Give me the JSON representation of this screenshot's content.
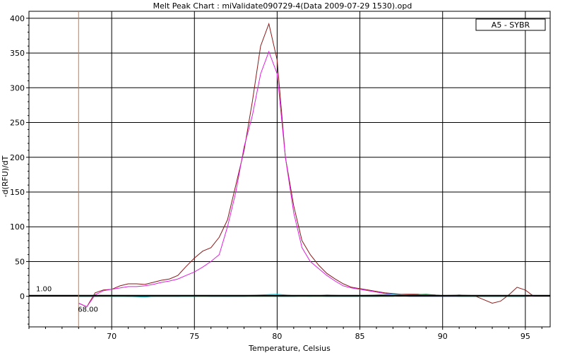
{
  "chart_data": {
    "type": "line",
    "title": "Melt Peak Chart : miValidate090729-4(Data 2009-07-29 1530).opd",
    "xlabel": "Temperature, Celsius",
    "ylabel": "-d(RFU)/dT",
    "xlim": [
      65,
      96.5
    ],
    "ylim": [
      -44,
      410
    ],
    "x_ticks": [
      70,
      75,
      80,
      85,
      90,
      95
    ],
    "x_tick_labels": [
      "70",
      "75",
      "80",
      "85",
      "90",
      "95"
    ],
    "y_ticks": [
      0,
      50,
      100,
      150,
      200,
      250,
      300,
      350,
      400
    ],
    "y_tick_labels": [
      "0",
      "50",
      "100",
      "150",
      "200",
      "250",
      "300",
      "350",
      "400"
    ],
    "grid": true,
    "legend": {
      "placement": "top-right",
      "entries": [
        "A5 - SYBR"
      ]
    },
    "threshold": {
      "value": 1.0,
      "label": "1.00"
    },
    "start_marker": {
      "x": 68.0,
      "label": "68.00",
      "color": "#e07030"
    },
    "colors": {
      "dark_red": "#8b1a1a",
      "magenta": "#e020e0",
      "cyan": "#20c8d8",
      "dark_blue": "#204080",
      "green": "#208040"
    },
    "series": [
      {
        "color_key": "dark_red",
        "x": [
          68,
          68.5,
          69,
          69.5,
          70,
          70.5,
          71,
          71.5,
          72,
          72.5,
          73,
          73.5,
          74,
          74.5,
          75,
          75.5,
          76,
          76.5,
          77,
          77.5,
          78,
          78.5,
          79,
          79.5,
          80,
          80.5,
          81,
          81.5,
          82,
          82.5,
          83,
          83.5,
          84,
          84.5,
          85,
          85.5,
          86,
          86.5,
          87,
          87.5,
          88,
          88.5,
          89,
          89.5,
          90,
          90.5,
          91,
          91.5,
          92,
          92.5,
          93,
          93.5,
          94,
          94.5,
          95,
          95.5
        ],
        "y": [
          -10,
          -15,
          5,
          9,
          10,
          15,
          18,
          18,
          17,
          20,
          23,
          25,
          30,
          43,
          55,
          65,
          70,
          85,
          110,
          160,
          210,
          280,
          360,
          392,
          340,
          200,
          130,
          80,
          60,
          45,
          33,
          25,
          18,
          13,
          11,
          9,
          7,
          5,
          4,
          3,
          3,
          3,
          2,
          2,
          1,
          1,
          2,
          1,
          0,
          -5,
          -10,
          -7,
          2,
          13,
          9,
          0
        ]
      },
      {
        "color_key": "magenta",
        "x": [
          68,
          68.5,
          69,
          69.5,
          70,
          70.5,
          71,
          71.5,
          72,
          72.5,
          73,
          73.5,
          74,
          74.5,
          75,
          75.5,
          76,
          76.5,
          77,
          77.5,
          78,
          78.5,
          79,
          79.5,
          80,
          80.5,
          81,
          81.5,
          82,
          82.5,
          83,
          83.5,
          84,
          84.5,
          85,
          85.5,
          86,
          86.5,
          87,
          87.5,
          88,
          88.5,
          89,
          89.5,
          90,
          90.5,
          91,
          91.5,
          92,
          92.5,
          93,
          93.5,
          94,
          94.5,
          95,
          95.5
        ],
        "y": [
          -10,
          -15,
          2,
          8,
          10,
          12,
          14,
          14,
          15,
          17,
          20,
          22,
          25,
          30,
          35,
          42,
          50,
          60,
          100,
          150,
          215,
          260,
          320,
          352,
          320,
          200,
          120,
          70,
          50,
          40,
          30,
          22,
          15,
          12,
          10,
          8,
          6,
          4,
          3,
          2,
          2,
          2,
          2,
          1,
          1,
          1,
          1,
          1,
          1,
          1,
          1,
          1,
          1,
          1,
          1,
          0
        ]
      },
      {
        "color_key": "cyan",
        "x": [
          68,
          69,
          70,
          71,
          72,
          73,
          74,
          75,
          76,
          77,
          78,
          79,
          80,
          81,
          82,
          83,
          84,
          85,
          86,
          87,
          88,
          89,
          90,
          91,
          92,
          93,
          94,
          95
        ],
        "y": [
          0,
          1,
          0,
          0,
          -1,
          1,
          0,
          0,
          1,
          0,
          1,
          2,
          3,
          1,
          0,
          2,
          1,
          1,
          2,
          3,
          2,
          2,
          1,
          2,
          1,
          1,
          0,
          0
        ]
      },
      {
        "color_key": "dark_blue",
        "x": [
          68,
          69,
          70,
          71,
          72,
          73,
          74,
          75,
          76,
          77,
          78,
          79,
          80,
          81,
          82,
          83,
          84,
          85,
          86,
          87,
          88,
          89,
          90,
          91,
          92,
          93,
          94,
          95
        ],
        "y": [
          0,
          0,
          1,
          0,
          0,
          0,
          0,
          1,
          0,
          0,
          0,
          1,
          0,
          0,
          1,
          0,
          0,
          0,
          0,
          1,
          0,
          0,
          0,
          0,
          0,
          0,
          0,
          0
        ]
      },
      {
        "color_key": "green",
        "x": [
          68,
          69,
          70,
          71,
          72,
          73,
          74,
          75,
          76,
          77,
          78,
          79,
          80,
          81,
          82,
          83,
          84,
          85,
          86,
          87,
          88,
          89,
          90,
          91,
          92,
          93,
          94,
          95
        ],
        "y": [
          0,
          0,
          0,
          0,
          0,
          0,
          0,
          0,
          0,
          0,
          0,
          0,
          0,
          0,
          0,
          0,
          0,
          0,
          0,
          0,
          2,
          3,
          1,
          0,
          0,
          0,
          0,
          0
        ]
      }
    ]
  }
}
